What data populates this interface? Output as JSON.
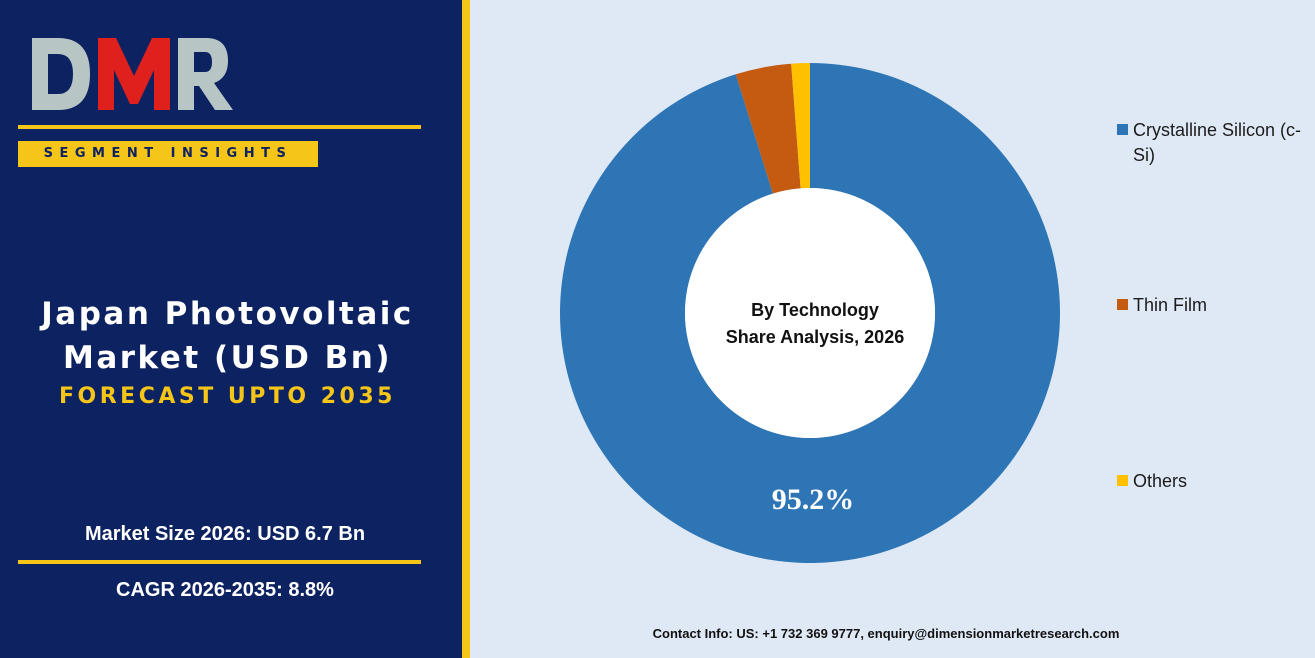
{
  "brand": {
    "logo_text": "DMR",
    "logo_colors": {
      "D": "#b7c6c5",
      "M": "#e0201d",
      "R": "#b7c6c5"
    },
    "badge": "SEGMENT INSIGHTS"
  },
  "report": {
    "title_line1": "Japan Photovoltaic",
    "title_line2": "Market (USD Bn)",
    "subtitle": "FORECAST UPTO 2035",
    "market_size": "Market Size 2026: USD 6.7 Bn",
    "cagr": "CAGR 2026-2035: 8.8%"
  },
  "colors": {
    "navy": "#0d2260",
    "gold": "#f5c518",
    "background_right": "#dfe9f5"
  },
  "chart_data": {
    "type": "pie",
    "subtype": "donut",
    "center_label_line1": "By Technology",
    "center_label_line2": "Share Analysis, 2026",
    "categories": [
      "Crystalline Silicon (c-Si)",
      "Thin Film",
      "Others"
    ],
    "values": [
      95.2,
      3.6,
      1.2
    ],
    "colors": [
      "#2e75b6",
      "#c55a11",
      "#ffc000"
    ],
    "data_labels": [
      "95.2%",
      "",
      ""
    ],
    "legend_position": "right"
  },
  "legend": {
    "item1": "Crystalline Silicon (c-Si)",
    "item2": "Thin Film",
    "item3": "Others"
  },
  "footer": {
    "contact": "Contact Info: US: +1 732 369 9777, enquiry@dimensionmarketresearch.com"
  }
}
